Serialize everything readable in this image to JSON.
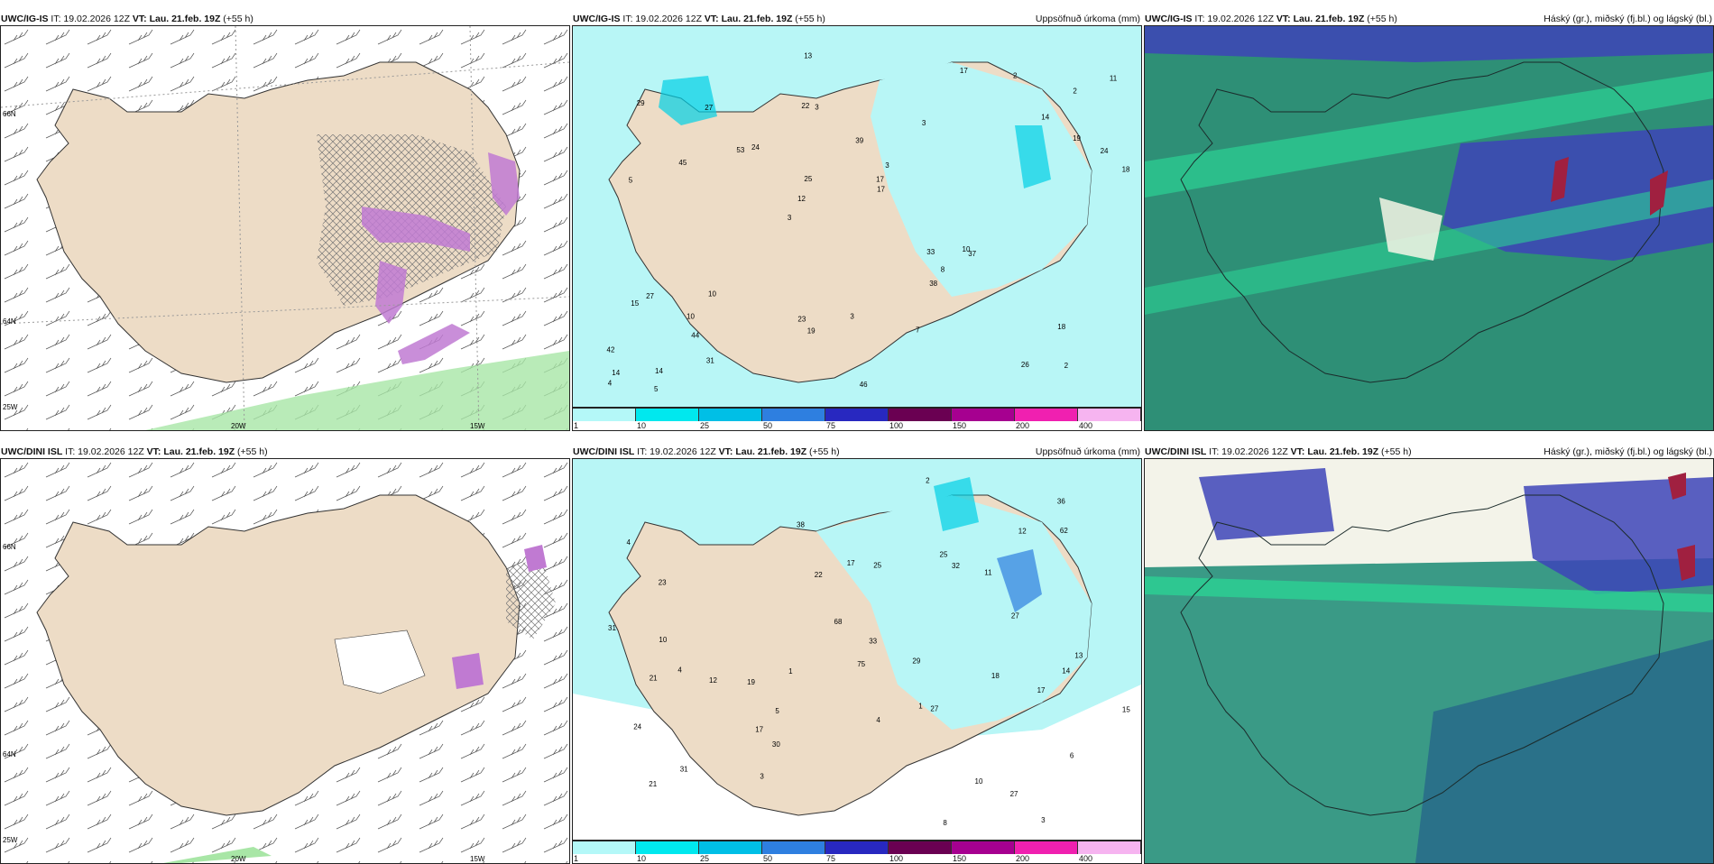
{
  "panels": [
    {
      "model": "UWC/IG-IS",
      "it": "IT: 19.02.2026 12Z",
      "vt_label": "VT:",
      "vt": "Lau. 21.feb. 19Z",
      "lead": "(+55 h)",
      "title_right": ""
    },
    {
      "model": "UWC/IG-IS",
      "it": "IT: 19.02.2026 12Z",
      "vt_label": "VT:",
      "vt": "Lau. 21.feb. 19Z",
      "lead": "(+55 h)",
      "title_right": "Uppsöfnuð úrkoma (mm)"
    },
    {
      "model": "UWC/IG-IS",
      "it": "IT: 19.02.2026 12Z",
      "vt_label": "VT:",
      "vt": "Lau. 21.feb. 19Z",
      "lead": "(+55 h)",
      "title_right": "Háský (gr.), miðský (fj.bl.) og lágský (bl.)"
    },
    {
      "model": "UWC/DINI ISL",
      "it": "IT: 19.02.2026 12Z",
      "vt_label": "VT:",
      "vt": "Lau. 21.feb. 19Z",
      "lead": "(+55 h)",
      "title_right": ""
    },
    {
      "model": "UWC/DINI ISL",
      "it": "IT: 19.02.2026 12Z",
      "vt_label": "VT:",
      "vt": "Lau. 21.feb. 19Z",
      "lead": "(+55 h)",
      "title_right": "Uppsöfnuð úrkoma (mm)"
    },
    {
      "model": "UWC/DINI ISL",
      "it": "IT: 19.02.2026 12Z",
      "vt_label": "VT:",
      "vt": "Lau. 21.feb. 19Z",
      "lead": "(+55 h)",
      "title_right": "Háský (gr.), miðský (fj.bl.) og lágský (bl.)"
    }
  ],
  "axis_labels": {
    "lat_66": "66N",
    "lat_64": "64N",
    "lon_25": "25W",
    "lon_20": "20W",
    "lon_15": "15W"
  },
  "legend": {
    "ticks": [
      "1",
      "10",
      "25",
      "50",
      "75",
      "100",
      "150",
      "200",
      "400"
    ],
    "colors": [
      "#b4f8f8",
      "#00e8ee",
      "#00bfe6",
      "#2e7fe0",
      "#2828c0",
      "#6a0052",
      "#a60090",
      "#f020b0",
      "#f6b4f0"
    ]
  },
  "precip_top": [
    "2",
    "5",
    "2",
    "3",
    "3",
    "14",
    "22",
    "39",
    "27",
    "24",
    "42",
    "44",
    "3",
    "3",
    "37",
    "29",
    "13",
    "18",
    "33",
    "19",
    "12",
    "23",
    "25",
    "27",
    "17",
    "10",
    "26",
    "18",
    "10",
    "46",
    "53",
    "45",
    "38",
    "31",
    "24",
    "17",
    "14",
    "19",
    "17",
    "15",
    "14",
    "11",
    "8",
    "7",
    "10",
    "5",
    "4",
    "3",
    "2"
  ],
  "precip_bottom": [
    "3",
    "4",
    "1",
    "4",
    "6",
    "23",
    "31",
    "19",
    "11",
    "17",
    "32",
    "27",
    "30",
    "38",
    "29",
    "24",
    "18",
    "33",
    "31",
    "21",
    "36",
    "25",
    "27",
    "15",
    "13",
    "10",
    "12",
    "75",
    "68",
    "62",
    "27",
    "21",
    "17",
    "25",
    "22",
    "17",
    "14",
    "10",
    "12",
    "8",
    "5",
    "4",
    "3",
    "2",
    "1"
  ],
  "colors": {
    "land": "#eddcc6",
    "sea_precip": "#b8f6f6",
    "cloud_low": "#2e8f76",
    "cloud_mid": "#3d44b8",
    "cloud_high": "#2cd294",
    "snow": "#c07ad2",
    "rain": "#a8e6a6"
  }
}
